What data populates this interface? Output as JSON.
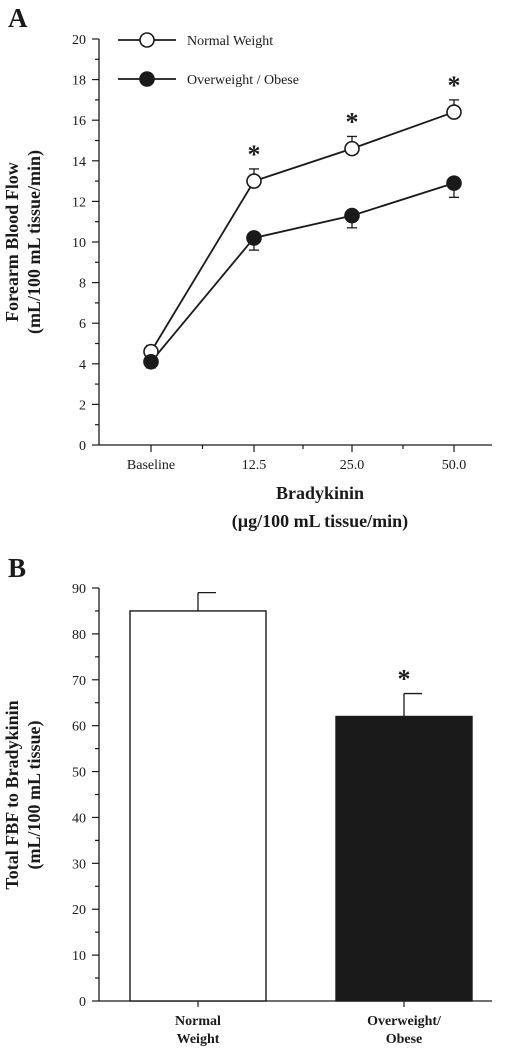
{
  "chart_data": [
    {
      "panel": "A",
      "type": "line",
      "x": [
        "Baseline",
        "12.5",
        "25.0",
        "50.0"
      ],
      "xlabel": "Bradykinin",
      "xlabel_unit": "(µg/100 mL tissue/min)",
      "ylabel": "Forearm Blood Flow",
      "ylabel_unit": "(mL/100 mL tissue/min)",
      "ylim": [
        0,
        20
      ],
      "yticks": [
        0,
        2,
        4,
        6,
        8,
        10,
        12,
        14,
        16,
        18,
        20
      ],
      "legend_position": "top-left",
      "series": [
        {
          "name": "Normal Weight",
          "marker": "open-circle",
          "color": "#ffffff",
          "values": [
            4.6,
            13.0,
            14.6,
            16.4
          ],
          "errors": [
            0.3,
            0.6,
            0.6,
            0.6
          ]
        },
        {
          "name": "Overweight / Obese",
          "marker": "filled-circle",
          "color": "#1a1a1a",
          "values": [
            4.1,
            10.2,
            11.3,
            12.9
          ],
          "errors": [
            0.3,
            0.6,
            0.6,
            0.7
          ]
        }
      ],
      "significance": [
        "",
        "*",
        "*",
        "*"
      ]
    },
    {
      "panel": "B",
      "type": "bar",
      "categories": [
        [
          "Normal",
          "Weight"
        ],
        [
          "Overweight/",
          "Obese"
        ]
      ],
      "values": [
        85,
        62
      ],
      "errors": [
        4,
        5
      ],
      "colors": [
        "#ffffff",
        "#1a1a1a"
      ],
      "ylabel": "Total FBF to Bradykinin",
      "ylabel_unit": "(mL/100 mL tissue)",
      "ylim": [
        0,
        90
      ],
      "yticks": [
        0,
        10,
        20,
        30,
        40,
        50,
        60,
        70,
        80,
        90
      ],
      "significance": [
        "",
        "*"
      ]
    }
  ]
}
